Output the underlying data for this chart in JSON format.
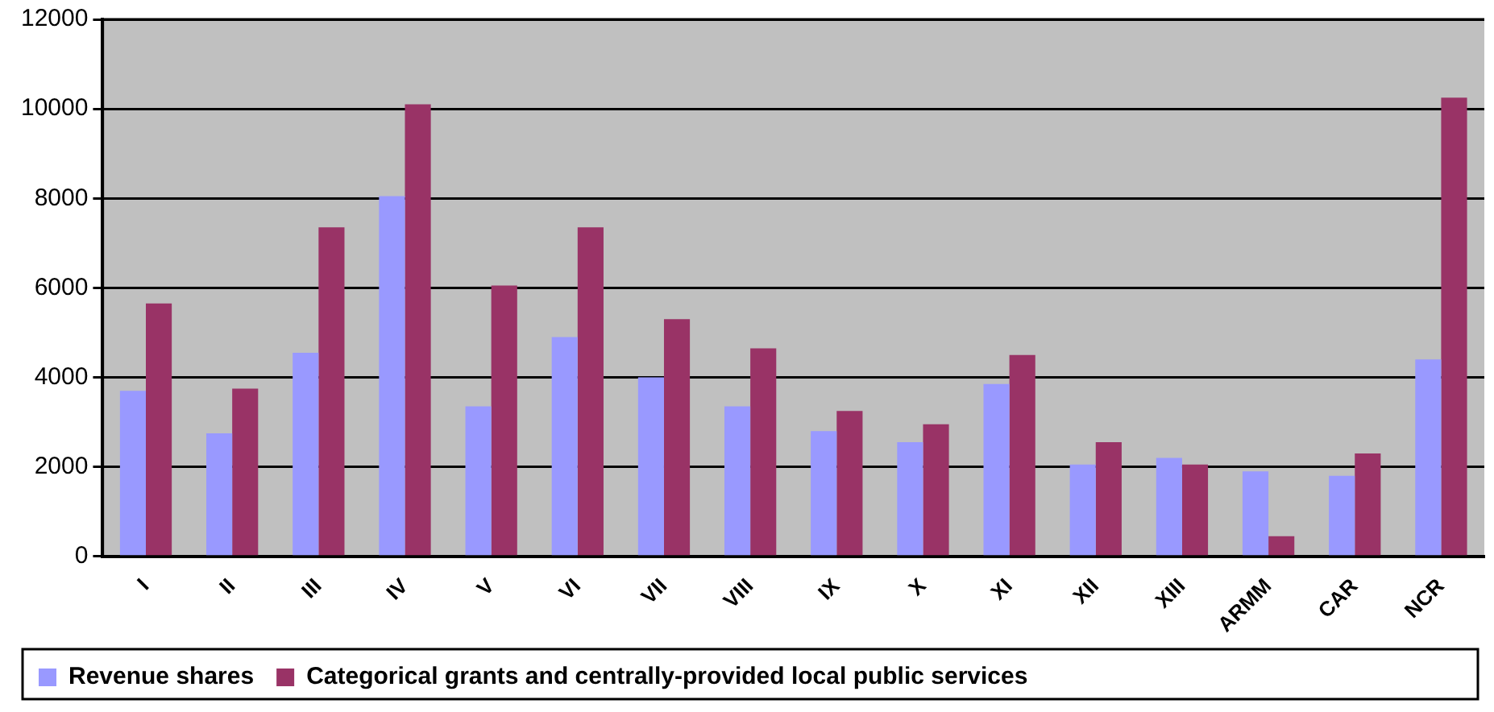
{
  "chart_data": {
    "type": "bar",
    "categories": [
      "I",
      "II",
      "III",
      "IV",
      "V",
      "VI",
      "VII",
      "VIII",
      "IX",
      "X",
      "XI",
      "XII",
      "XIII",
      "ARMM",
      "CAR",
      "NCR"
    ],
    "series": [
      {
        "name": "Revenue shares",
        "color": "#9999ff",
        "values": [
          3700,
          2750,
          4550,
          8050,
          3350,
          4900,
          4000,
          3350,
          2800,
          2550,
          3850,
          2050,
          2200,
          1900,
          1800,
          4400
        ]
      },
      {
        "name": "Categorical grants and centrally-provided local public services",
        "color": "#993366",
        "values": [
          5650,
          3750,
          7350,
          10100,
          6050,
          7350,
          5300,
          4650,
          3250,
          2950,
          4500,
          2550,
          2050,
          450,
          2300,
          10250
        ]
      }
    ],
    "ylim": [
      0,
      12000
    ],
    "yticks": [
      0,
      2000,
      4000,
      6000,
      8000,
      10000,
      12000
    ],
    "grid": "y",
    "legend": "bottom"
  }
}
